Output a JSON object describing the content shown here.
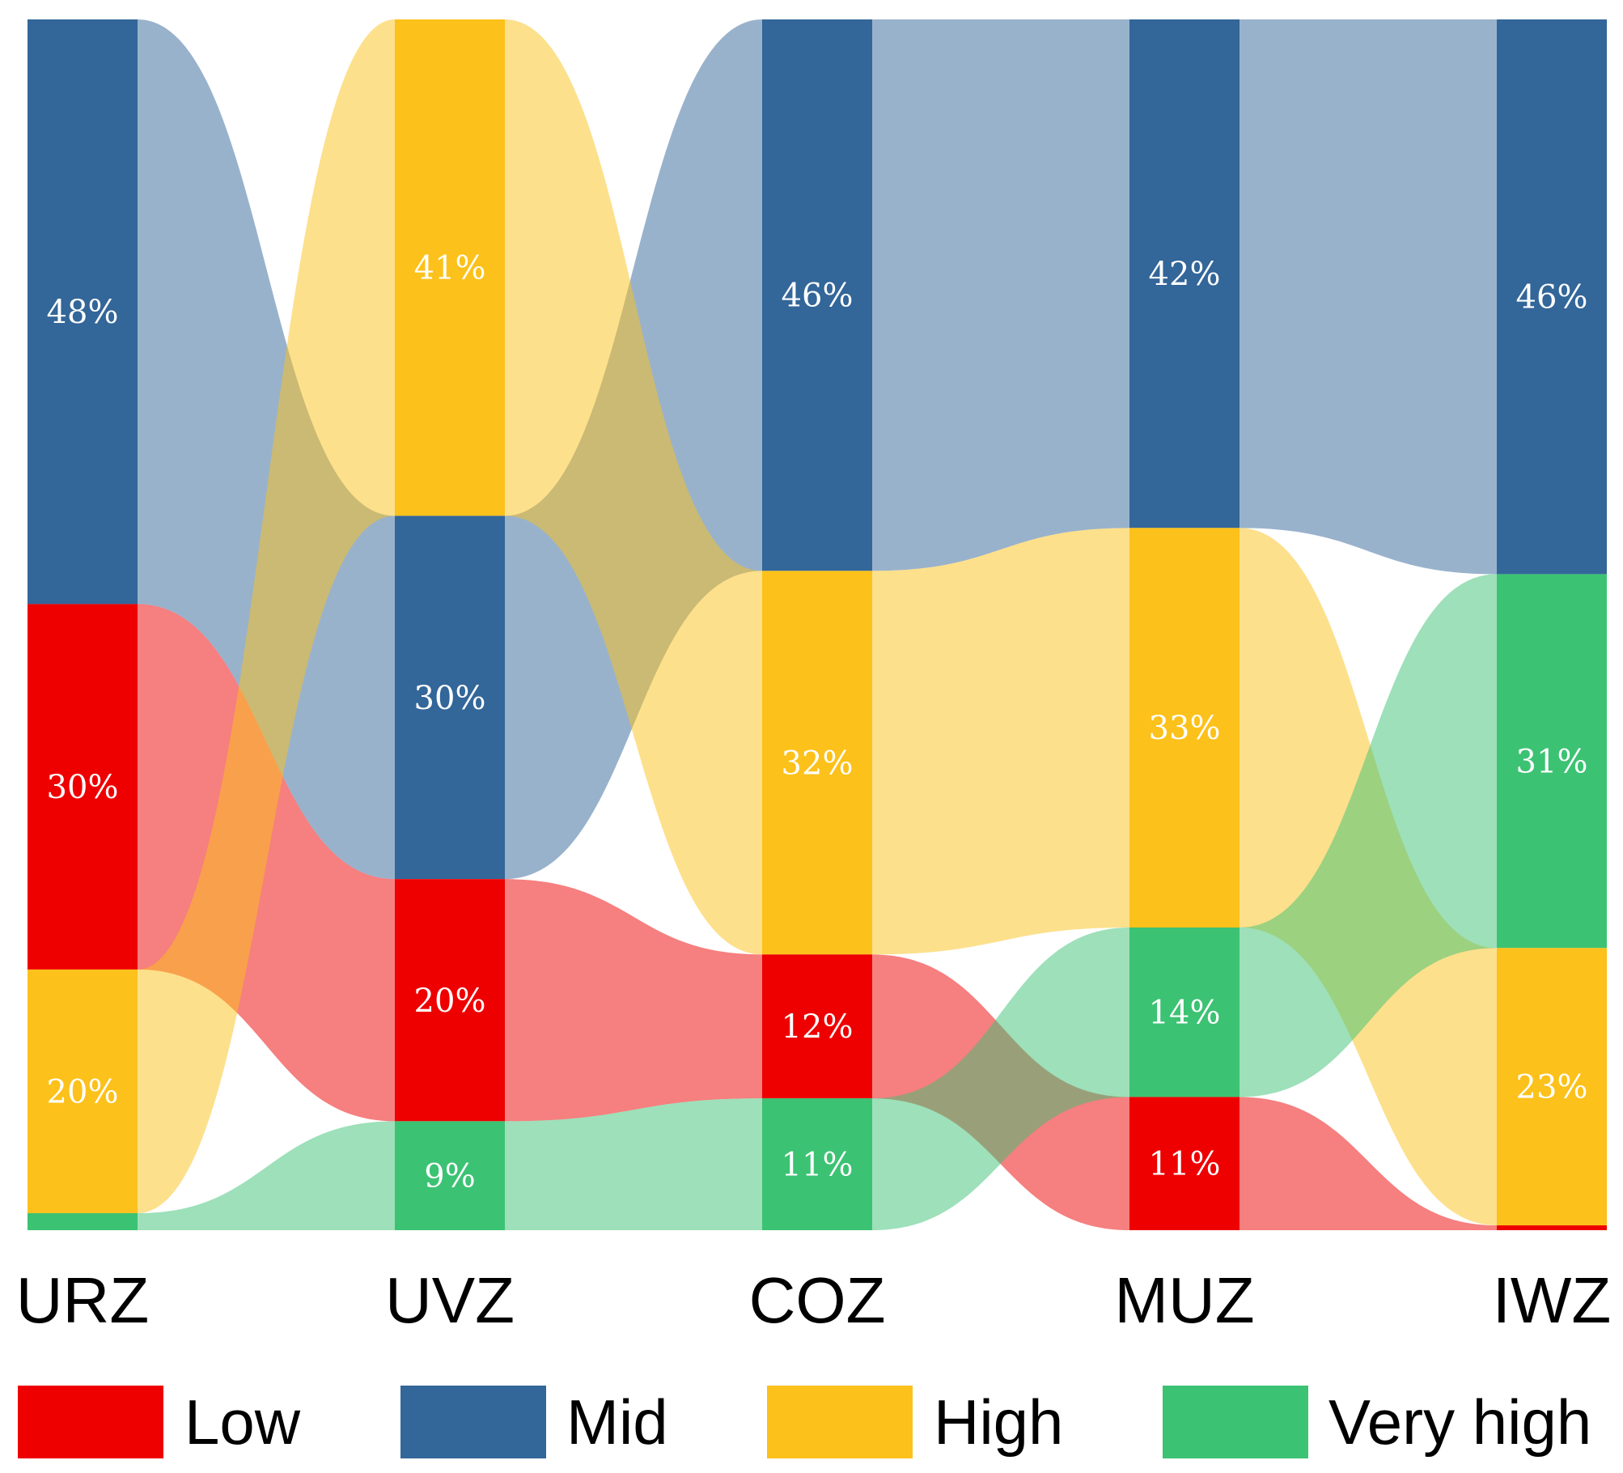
{
  "chart_data": {
    "type": "sankey",
    "title": "",
    "stages": [
      "URZ",
      "UVZ",
      "COZ",
      "MUZ",
      "IWZ"
    ],
    "categories": [
      {
        "key": "mid",
        "name": "Mid",
        "color": "#336699"
      },
      {
        "key": "low",
        "name": "Low",
        "color": "#EE0000"
      },
      {
        "key": "high",
        "name": "High",
        "color": "#FCC11A"
      },
      {
        "key": "vhigh",
        "name": "Very high",
        "color": "#3CC273"
      }
    ],
    "columns": [
      {
        "stage": "URZ",
        "segments": [
          {
            "cat": "mid",
            "value": 48,
            "label": "48%"
          },
          {
            "cat": "low",
            "value": 30,
            "label": "30%"
          },
          {
            "cat": "high",
            "value": 20,
            "label": "20%"
          },
          {
            "cat": "vhigh",
            "value": 1.4,
            "label": ""
          }
        ]
      },
      {
        "stage": "UVZ",
        "segments": [
          {
            "cat": "high",
            "value": 41,
            "label": "41%"
          },
          {
            "cat": "mid",
            "value": 30,
            "label": "30%"
          },
          {
            "cat": "low",
            "value": 20,
            "label": "20%"
          },
          {
            "cat": "vhigh",
            "value": 9,
            "label": "9%"
          }
        ]
      },
      {
        "stage": "COZ",
        "segments": [
          {
            "cat": "mid",
            "value": 46,
            "label": "46%"
          },
          {
            "cat": "high",
            "value": 32,
            "label": "32%"
          },
          {
            "cat": "low",
            "value": 12,
            "label": "12%"
          },
          {
            "cat": "vhigh",
            "value": 11,
            "label": "11%"
          }
        ]
      },
      {
        "stage": "MUZ",
        "segments": [
          {
            "cat": "mid",
            "value": 42,
            "label": "42%"
          },
          {
            "cat": "high",
            "value": 33,
            "label": "33%"
          },
          {
            "cat": "vhigh",
            "value": 14,
            "label": "14%"
          },
          {
            "cat": "low",
            "value": 11,
            "label": "11%"
          }
        ]
      },
      {
        "stage": "IWZ",
        "segments": [
          {
            "cat": "mid",
            "value": 46,
            "label": "46%"
          },
          {
            "cat": "vhigh",
            "value": 31,
            "label": "31%"
          },
          {
            "cat": "high",
            "value": 23,
            "label": "23%"
          },
          {
            "cat": "low",
            "value": 0.4,
            "label": ""
          }
        ]
      }
    ],
    "flow_rule": "each category segment flows to the same category in the next stage",
    "legend": {
      "position": "bottom",
      "items": [
        "Low",
        "Mid",
        "High",
        "Very high"
      ]
    }
  }
}
